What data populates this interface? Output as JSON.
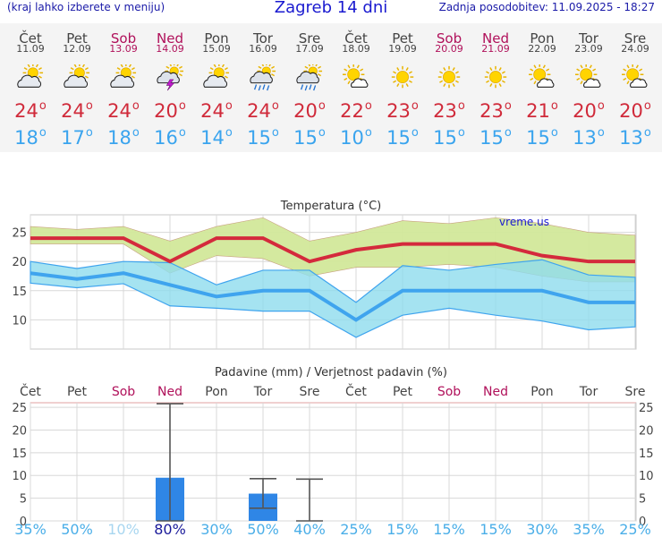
{
  "header": {
    "left": "(kraj lahko izberete v meniju)",
    "title": "Zagreb 14 dni",
    "right": "Zadnja posodobitev: 11.09.2025 - 18:27"
  },
  "days": [
    {
      "name": "Čet",
      "date": "11.09",
      "weekend": false,
      "icon": "sun-cloud-icon",
      "tmax": "24",
      "tmin": "18",
      "prob": "35%"
    },
    {
      "name": "Pet",
      "date": "12.09",
      "weekend": false,
      "icon": "sun-cloud-icon",
      "tmax": "24",
      "tmin": "17",
      "prob": "50%"
    },
    {
      "name": "Sob",
      "date": "13.09",
      "weekend": true,
      "icon": "sun-cloud-icon",
      "tmax": "24",
      "tmin": "18",
      "prob": "10%"
    },
    {
      "name": "Ned",
      "date": "14.09",
      "weekend": true,
      "icon": "thunderstorm-icon",
      "tmax": "20",
      "tmin": "16",
      "prob": "80%"
    },
    {
      "name": "Pon",
      "date": "15.09",
      "weekend": false,
      "icon": "sun-cloud-icon",
      "tmax": "24",
      "tmin": "14",
      "prob": "30%"
    },
    {
      "name": "Tor",
      "date": "16.09",
      "weekend": false,
      "icon": "sun-cloud-rain-icon",
      "tmax": "24",
      "tmin": "15",
      "prob": "50%"
    },
    {
      "name": "Sre",
      "date": "17.09",
      "weekend": false,
      "icon": "sun-cloud-rain-icon",
      "tmax": "20",
      "tmin": "15",
      "prob": "40%"
    },
    {
      "name": "Čet",
      "date": "18.09",
      "weekend": false,
      "icon": "sun-small-cloud-icon",
      "tmax": "22",
      "tmin": "10",
      "prob": "25%"
    },
    {
      "name": "Pet",
      "date": "19.09",
      "weekend": false,
      "icon": "sun-icon",
      "tmax": "23",
      "tmin": "15",
      "prob": "15%"
    },
    {
      "name": "Sob",
      "date": "20.09",
      "weekend": true,
      "icon": "sun-icon",
      "tmax": "23",
      "tmin": "15",
      "prob": "15%"
    },
    {
      "name": "Ned",
      "date": "21.09",
      "weekend": true,
      "icon": "sun-icon",
      "tmax": "23",
      "tmin": "15",
      "prob": "15%"
    },
    {
      "name": "Pon",
      "date": "22.09",
      "weekend": false,
      "icon": "sun-small-cloud-icon",
      "tmax": "21",
      "tmin": "15",
      "prob": "30%"
    },
    {
      "name": "Tor",
      "date": "23.09",
      "weekend": false,
      "icon": "sun-small-cloud-icon",
      "tmax": "20",
      "tmin": "13",
      "prob": "35%"
    },
    {
      "name": "Sre",
      "date": "24.09",
      "weekend": false,
      "icon": "sun-small-cloud-icon",
      "tmax": "20",
      "tmin": "13",
      "prob": "25%"
    }
  ],
  "colors": {
    "tmax": "#d42a3c",
    "tmin": "#3fa4ee",
    "tmax_band": "#d2e89a",
    "tmin_band": "#8edcee",
    "band_overlap": "#86cf7a",
    "weekend": "#b0105a",
    "precip_bar": "#2f86e6",
    "prob_high": "#1a1a9a",
    "prob_low": "#a8d6f0",
    "prob_mid": "#4aaee8"
  },
  "chart_data": [
    {
      "type": "line",
      "title": "Temperatura (°C)",
      "watermark": "vreme.us",
      "categories": [
        "11.09",
        "12.09",
        "13.09",
        "14.09",
        "15.09",
        "16.09",
        "17.09",
        "18.09",
        "19.09",
        "20.09",
        "21.09",
        "22.09",
        "23.09",
        "24.09"
      ],
      "ylim": [
        5,
        28
      ],
      "yticks": [
        10,
        15,
        20,
        25
      ],
      "grid": true,
      "series": [
        {
          "role": "tmax",
          "values": [
            24,
            24,
            24,
            20,
            24,
            24,
            20,
            22,
            23,
            23,
            23,
            21,
            20,
            20
          ]
        },
        {
          "role": "tmax_upper",
          "values": [
            26,
            25.5,
            26,
            23.5,
            26,
            27.5,
            23.5,
            25,
            27,
            26.5,
            27.5,
            26.5,
            25,
            24.5
          ]
        },
        {
          "role": "tmax_lower",
          "values": [
            23,
            23,
            23,
            18,
            21,
            20.5,
            17.5,
            19,
            19,
            19.5,
            19,
            17.5,
            16.5,
            16.5
          ]
        },
        {
          "role": "tmin",
          "values": [
            18,
            17,
            18,
            16,
            14,
            15,
            15,
            10,
            15,
            15,
            15,
            15,
            13,
            13
          ]
        },
        {
          "role": "tmin_upper",
          "values": [
            20,
            18.8,
            20,
            19.8,
            16,
            18.5,
            18.5,
            13,
            19.3,
            18.5,
            19.5,
            20.3,
            17.7,
            17.3
          ]
        },
        {
          "role": "tmin_lower",
          "values": [
            16.3,
            15.5,
            16.2,
            12.4,
            12,
            11.5,
            11.5,
            7,
            10.8,
            12,
            10.8,
            9.8,
            8.3,
            8.8
          ]
        }
      ]
    },
    {
      "type": "bar",
      "title": "Padavine (mm) / Verjetnost padavin (%)",
      "categories": [
        "Čet",
        "Pet",
        "Sob",
        "Ned",
        "Pon",
        "Tor",
        "Sre",
        "Čet",
        "Pet",
        "Sob",
        "Ned",
        "Pon",
        "Tor",
        "Sre"
      ],
      "ylim": [
        0,
        26
      ],
      "yticks": [
        0,
        5,
        10,
        15,
        20,
        25
      ],
      "values": [
        0,
        0,
        0,
        9.5,
        0,
        6,
        0,
        0,
        0,
        0,
        0,
        0,
        0,
        0
      ],
      "range_high": [
        null,
        null,
        null,
        25.8,
        null,
        9.3,
        9.2,
        null,
        null,
        null,
        null,
        null,
        null,
        null
      ],
      "range_low": [
        null,
        null,
        null,
        0,
        null,
        2.8,
        0,
        null,
        null,
        null,
        null,
        null,
        null,
        null
      ],
      "probability": [
        "35%",
        "50%",
        "10%",
        "80%",
        "30%",
        "50%",
        "40%",
        "25%",
        "15%",
        "15%",
        "15%",
        "30%",
        "35%",
        "25%"
      ]
    }
  ]
}
